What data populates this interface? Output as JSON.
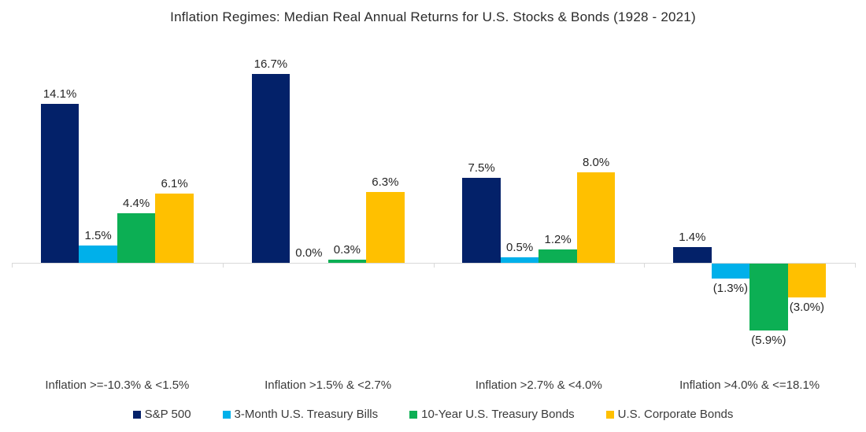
{
  "chart_data": {
    "type": "bar",
    "title": "Inflation Regimes: Median Real Annual Returns for U.S. Stocks & Bonds (1928 - 2021)",
    "categories": [
      "Inflation >=-10.3% & <1.5%",
      "Inflation >1.5% & <2.7%",
      "Inflation >2.7% & <4.0%",
      "Inflation >4.0% & <=18.1%"
    ],
    "series": [
      {
        "name": "S&P 500",
        "color": "#032169",
        "values": [
          14.1,
          16.7,
          7.5,
          1.4
        ],
        "labels": [
          "14.1%",
          "16.7%",
          "7.5%",
          "1.4%"
        ]
      },
      {
        "name": "3-Month U.S. Treasury Bills",
        "color": "#00b0ea",
        "values": [
          1.5,
          0.0,
          0.5,
          -1.3
        ],
        "labels": [
          "1.5%",
          "0.0%",
          "0.5%",
          "(1.3%)"
        ]
      },
      {
        "name": "10-Year U.S. Treasury Bonds",
        "color": "#0caf54",
        "values": [
          4.4,
          0.3,
          1.2,
          -5.9
        ],
        "labels": [
          "4.4%",
          "0.3%",
          "1.2%",
          "(5.9%)"
        ]
      },
      {
        "name": "U.S. Corporate Bonds",
        "color": "#ffc000",
        "values": [
          6.1,
          6.3,
          8.0,
          -3.0
        ],
        "labels": [
          "6.1%",
          "6.3%",
          "8.0%",
          "(3.0%)"
        ]
      }
    ],
    "ylabel": "",
    "xlabel": "",
    "ylim": [
      -7,
      18
    ],
    "grid": false,
    "y_axis_shown": false,
    "legend_position": "bottom",
    "value_label_format": "percent with one decimal, negatives in parentheses",
    "axis_line_color": "#d9d9d9"
  }
}
